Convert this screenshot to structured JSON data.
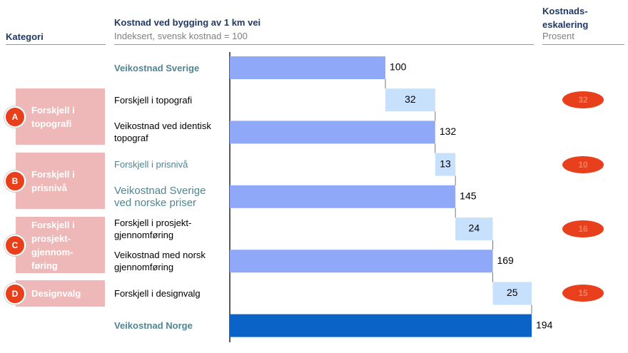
{
  "chart_data": {
    "type": "waterfall",
    "title": "Kostnad ved bygging av 1 km vei",
    "subtitle": "Indeksert, svensk kostnad = 100",
    "category_header": "Kategori",
    "escalation_header": "Kostnads-eskalering",
    "escalation_subheader": "Prosent",
    "categories": [
      "Veikostnad Sverige",
      "Forskjell i topografi",
      "Veikostnad ved identisk topograf",
      "Forskjell i prisnivå",
      "Veikostnad Sverige ved norske priser",
      "Forskjell i prosjekt-gjennomføring",
      "Veikostnad med norsk gjennomføring",
      "Forskjell i designvalg",
      "Veikostnad Norge"
    ],
    "values": [
      100,
      32,
      132,
      13,
      145,
      24,
      169,
      25,
      194
    ],
    "is_total": [
      true,
      false,
      true,
      false,
      true,
      false,
      true,
      false,
      true
    ],
    "colors": [
      "#8fa9f8",
      "#c7e0fc",
      "#8fa9f8",
      "#c7e0fc",
      "#8fa9f8",
      "#c7e0fc",
      "#8fa9f8",
      "#c7e0fc",
      "#0a64c8"
    ],
    "groups": [
      {
        "letter": "A",
        "label": "Forskjell i topografi",
        "escalation": 32
      },
      {
        "letter": "B",
        "label": "Forskjell i prisnivå",
        "escalation": 10
      },
      {
        "letter": "C",
        "label": "Forskjell i prosjekt-gjennom-føring",
        "escalation": 16
      },
      {
        "letter": "D",
        "label": "Designvalg",
        "escalation": 15
      }
    ]
  }
}
